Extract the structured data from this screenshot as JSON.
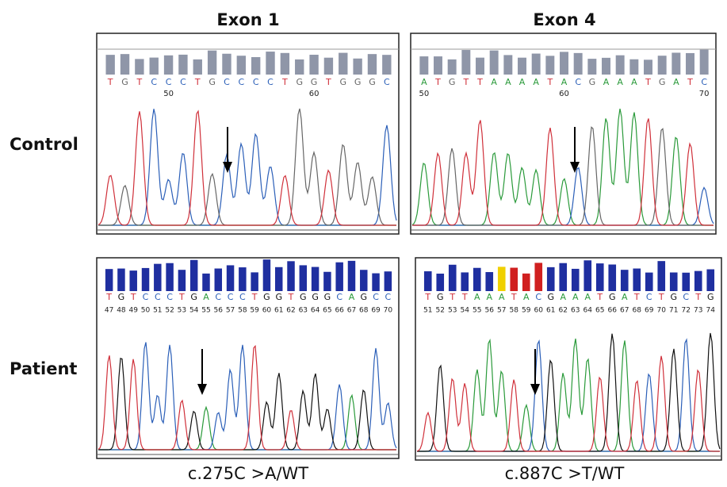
{
  "columns": [
    "Exon 1",
    "Exon 4"
  ],
  "rows": [
    "Control",
    "Patient"
  ],
  "panels": [
    {
      "bases": [
        "T",
        "G",
        "T",
        "C",
        "C",
        "C",
        "T",
        "G",
        "C",
        "C",
        "C",
        "C",
        "T",
        "G",
        "G",
        "T",
        "G",
        "G",
        "G",
        "C"
      ],
      "positions": [
        50,
        60
      ]
    },
    {
      "bases": [
        "A",
        "T",
        "G",
        "T",
        "T",
        "A",
        "A",
        "A",
        "A",
        "T",
        "A",
        "C",
        "G",
        "A",
        "A",
        "A",
        "T",
        "G",
        "A",
        "T",
        "C"
      ],
      "positions": [
        50,
        60,
        70
      ]
    },
    {
      "bases": [
        "T",
        "G",
        "T",
        "C",
        "C",
        "C",
        "T",
        "G",
        "A",
        "C",
        "C",
        "C",
        "T",
        "G",
        "G",
        "T",
        "G",
        "G",
        "G",
        "C",
        "A",
        "G",
        "C",
        "C"
      ],
      "positions": [
        47,
        48,
        49,
        50,
        51,
        52,
        53,
        54,
        55,
        56,
        57,
        58,
        59,
        60,
        61,
        62,
        63,
        64,
        65,
        66,
        67,
        68,
        69,
        70
      ]
    },
    {
      "bases": [
        "T",
        "G",
        "T",
        "T",
        "A",
        "A",
        "A",
        "T",
        "A",
        "C",
        "G",
        "A",
        "A",
        "A",
        "T",
        "G",
        "A",
        "T",
        "C",
        "T",
        "G",
        "C",
        "T",
        "G"
      ],
      "positions": [
        51,
        52,
        53,
        54,
        55,
        56,
        57,
        58,
        59,
        60,
        61,
        62,
        63,
        64,
        65,
        66,
        67,
        68,
        69,
        70,
        71,
        72,
        73,
        74
      ]
    }
  ],
  "captions": [
    "c.275C >A/WT",
    "c.887C >T/WT"
  ]
}
